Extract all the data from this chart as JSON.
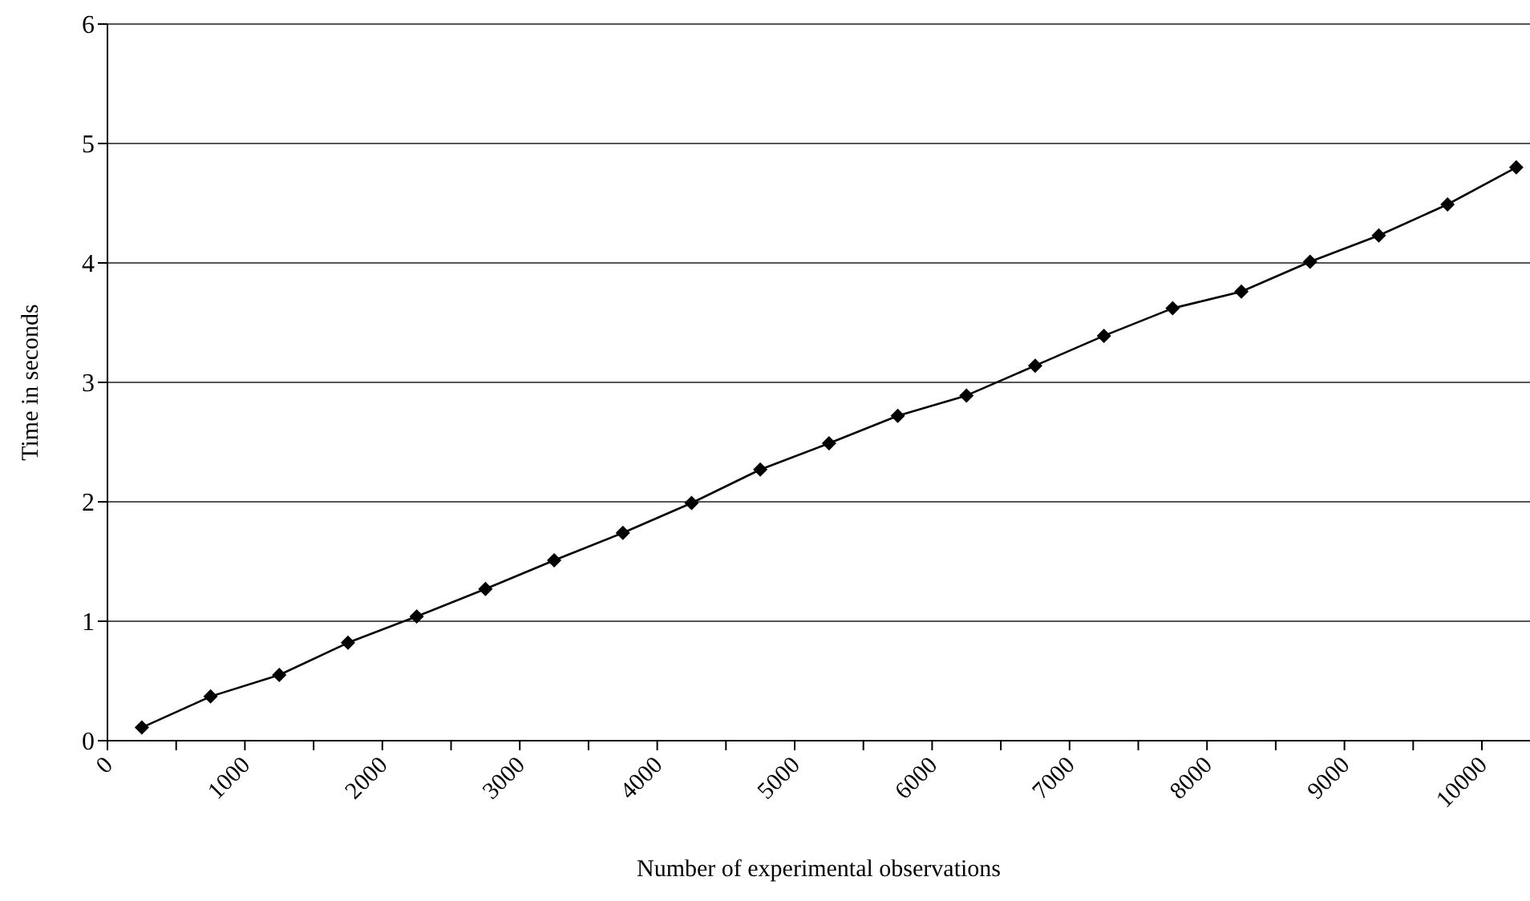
{
  "chart_data": {
    "type": "line",
    "xlabel": "Number of experimental observations",
    "ylabel": "Time in seconds",
    "x": [
      250,
      750,
      1250,
      1750,
      2250,
      2750,
      3250,
      3750,
      4250,
      4750,
      5250,
      5750,
      6250,
      6750,
      7250,
      7750,
      8250,
      8750,
      9250,
      9750,
      10250
    ],
    "series": [
      {
        "color": "#000000",
        "values": [
          0.11,
          0.37,
          0.55,
          0.82,
          1.04,
          1.27,
          1.51,
          1.74,
          1.99,
          2.27,
          2.49,
          2.72,
          2.89,
          3.14,
          3.39,
          3.62,
          3.76,
          4.01,
          4.23,
          4.49,
          4.8
        ]
      }
    ],
    "xlim": [
      0,
      10350
    ],
    "xticks": [
      0,
      {
        "value": 500,
        "label": null
      },
      1000,
      {
        "value": 1500,
        "label": null
      },
      2000,
      {
        "value": 2500,
        "label": null
      },
      3000,
      {
        "value": 3500,
        "label": null
      },
      4000,
      {
        "value": 4500,
        "label": null
      },
      5000,
      {
        "value": 5500,
        "label": null
      },
      6000,
      {
        "value": 6500,
        "label": null
      },
      7000,
      {
        "value": 7500,
        "label": null
      },
      8000,
      {
        "value": 8500,
        "label": null
      },
      9000,
      {
        "value": 9500,
        "label": null
      },
      10000
    ],
    "ylim": [
      0,
      6
    ],
    "yticks": [
      0,
      1,
      2,
      3,
      4,
      5,
      6
    ],
    "grid": "y",
    "marker": "diamond",
    "line_style": "solid",
    "legend": false
  }
}
